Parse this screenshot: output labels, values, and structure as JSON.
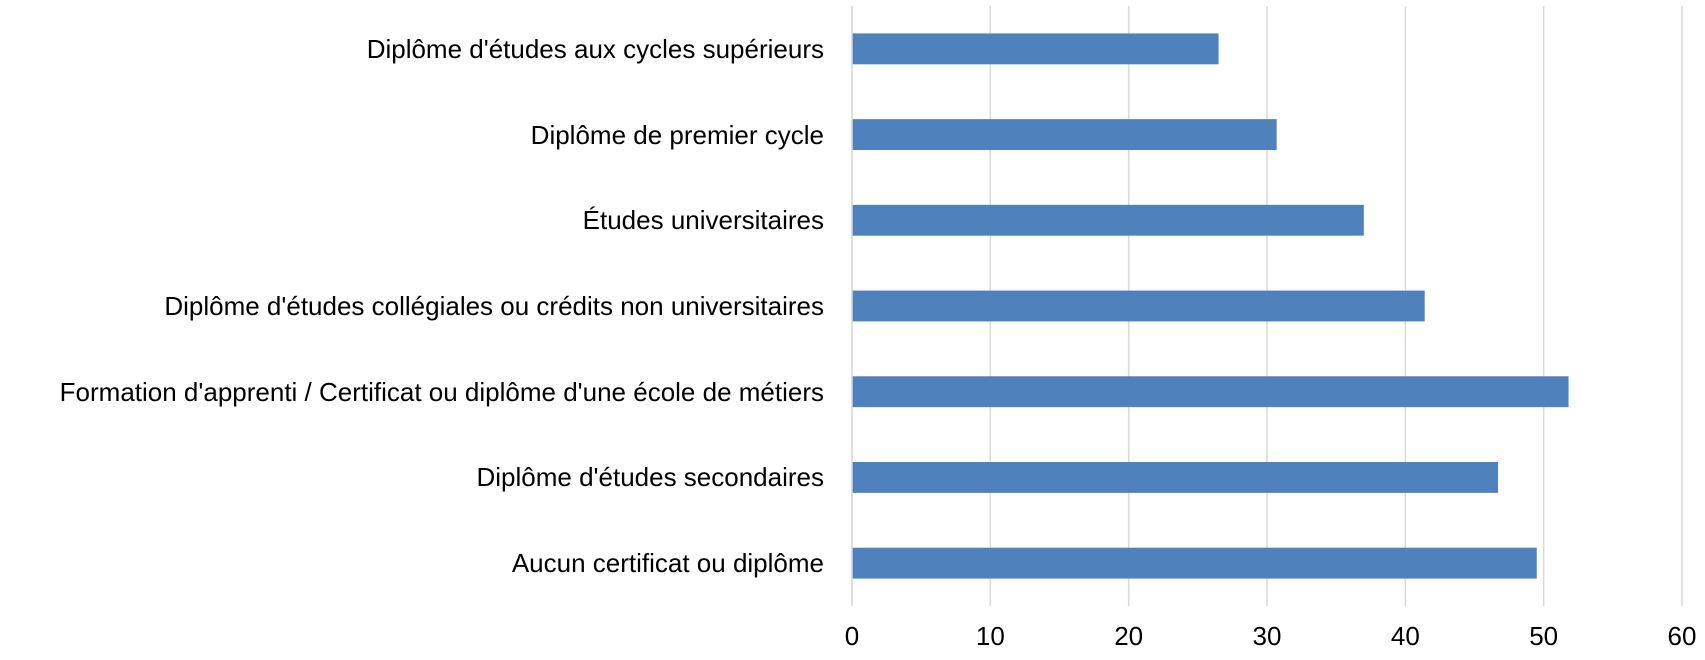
{
  "chart_data": {
    "type": "barh",
    "categories": [
      "Diplôme d'études aux cycles supérieurs",
      "Diplôme de premier cycle",
      "Études universitaires",
      "Diplôme d'études collégiales ou crédits non universitaires",
      "Formation d'apprenti / Certificat ou diplôme d'une école de métiers",
      "Diplôme d'études secondaires",
      "Aucun certificat ou diplôme"
    ],
    "values": [
      26.5,
      30.7,
      37.0,
      41.4,
      51.8,
      46.7,
      49.5
    ],
    "color": "#4f81bd",
    "xlim": [
      0,
      60
    ],
    "xticks": [
      0,
      10,
      20,
      30,
      40,
      50,
      60
    ],
    "grid": true
  }
}
